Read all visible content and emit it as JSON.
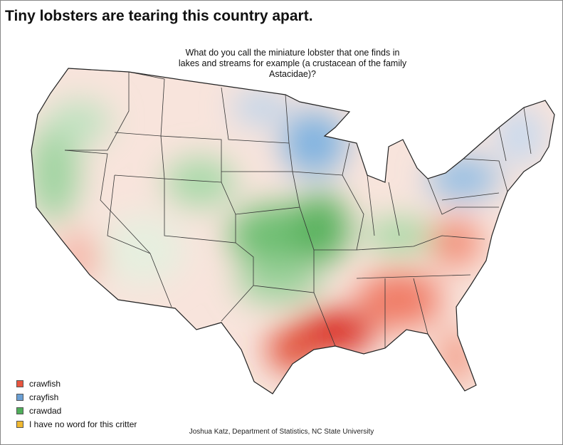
{
  "title": "Tiny lobsters are tearing this country apart.",
  "question": [
    "What do you call the miniature lobster that one finds in",
    "lakes and streams for example (a crustacean of the family",
    "Astacidae)?"
  ],
  "legend": [
    {
      "name": "crawfish",
      "color": "#e8553f"
    },
    {
      "name": "crayfish",
      "color": "#6a9fd4"
    },
    {
      "name": "crawdad",
      "color": "#4fae5a"
    },
    {
      "name": "I have no word for this critter",
      "color": "#f0b830"
    }
  ],
  "credit": "Joshua Katz, Department of Statistics, NC State University"
}
